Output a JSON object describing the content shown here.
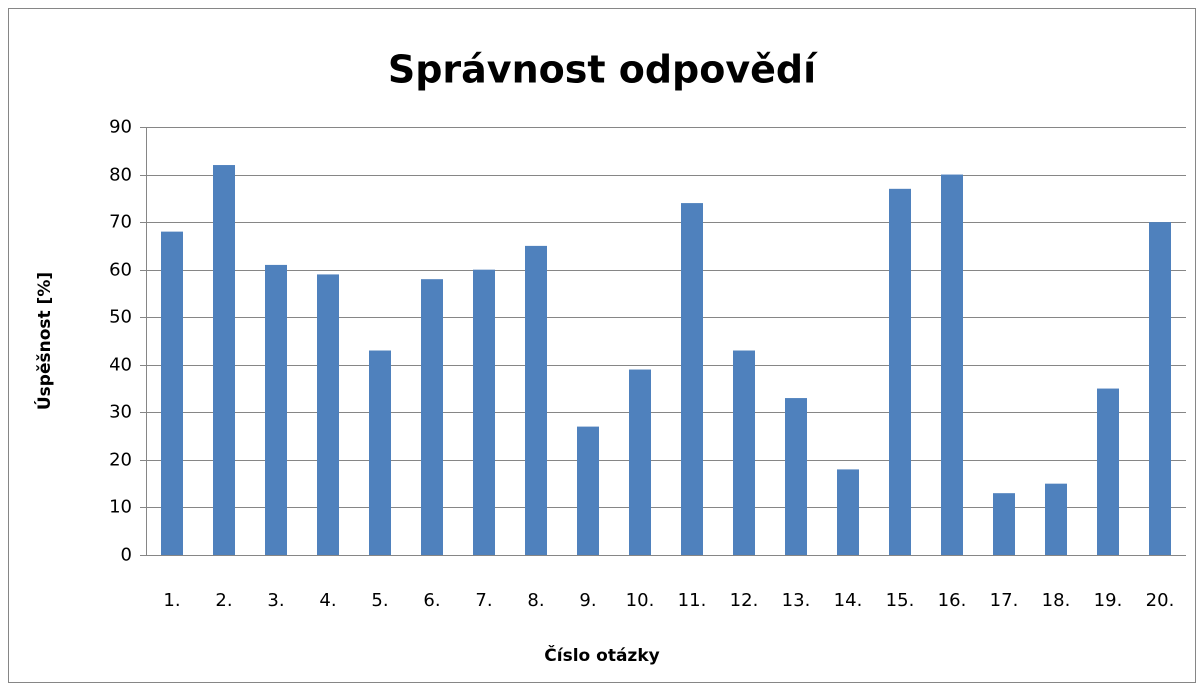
{
  "chart_data": {
    "type": "bar",
    "title": "Správnost odpovědí",
    "xlabel": "Číslo otázky",
    "ylabel": "Úspěšnost [%]",
    "categories": [
      "1.",
      "2.",
      "3.",
      "4.",
      "5.",
      "6.",
      "7.",
      "8.",
      "9.",
      "10.",
      "11.",
      "12.",
      "13.",
      "14.",
      "15.",
      "16.",
      "17.",
      "18.",
      "19.",
      "20."
    ],
    "values": [
      68,
      82,
      61,
      59,
      43,
      58,
      60,
      65,
      27,
      39,
      74,
      43,
      33,
      18,
      77,
      80,
      13,
      15,
      35,
      70
    ],
    "color": "#4f81bd",
    "ylim": [
      0,
      90
    ],
    "yticks": [
      0,
      10,
      20,
      30,
      40,
      50,
      60,
      70,
      80,
      90
    ],
    "grid": true
  }
}
